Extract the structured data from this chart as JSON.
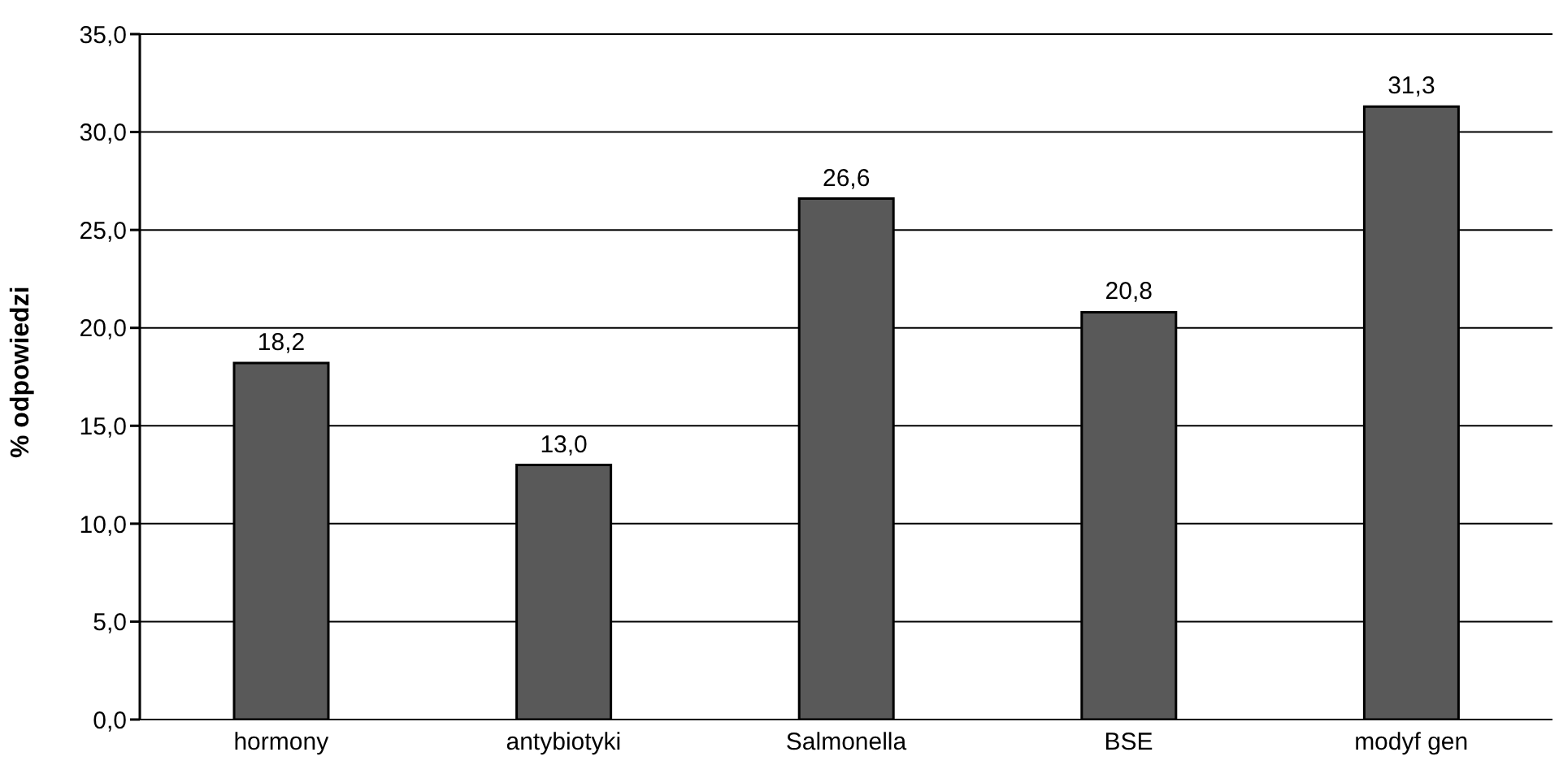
{
  "chart_data": {
    "type": "bar",
    "ylabel": "% odpowiedzi",
    "categories": [
      "hormony",
      "antybiotyki",
      "Salmonella",
      "BSE",
      "modyf gen"
    ],
    "values": [
      18.2,
      13.0,
      26.6,
      20.8,
      31.3
    ],
    "value_labels": [
      "18,2",
      "13,0",
      "26,6",
      "20,8",
      "31,3"
    ],
    "color": "#595959",
    "ylim": [
      0,
      35
    ],
    "yticks": [
      {
        "value": 0,
        "label": "0,0"
      },
      {
        "value": 5,
        "label": "5,0"
      },
      {
        "value": 10,
        "label": "10,0"
      },
      {
        "value": 15,
        "label": "15,0"
      },
      {
        "value": 20,
        "label": "20,0"
      },
      {
        "value": 25,
        "label": "25,0"
      },
      {
        "value": 30,
        "label": "30,0"
      },
      {
        "value": 35,
        "label": "35,0"
      }
    ],
    "grid": "y"
  }
}
